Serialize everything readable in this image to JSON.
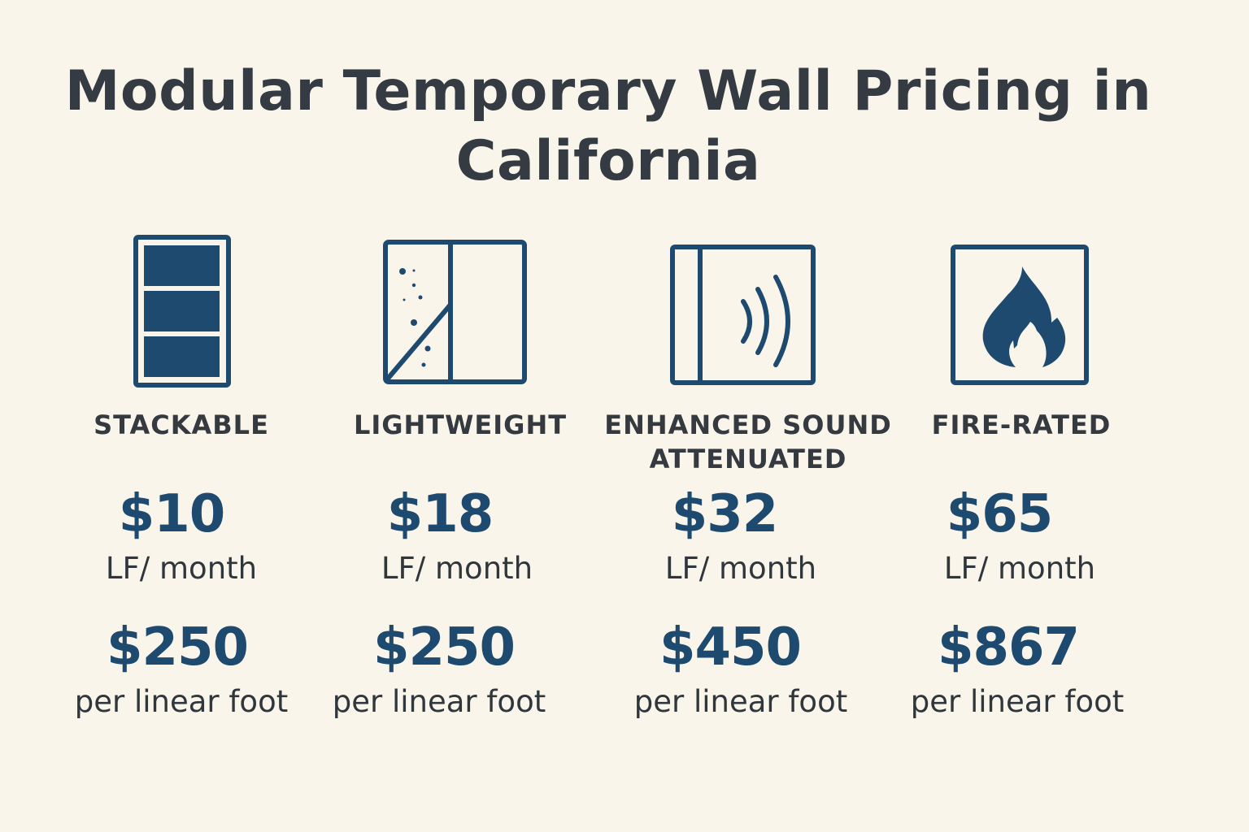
{
  "title": "Modular Temporary Wall Pricing in California",
  "colors": {
    "accent": "#1d4a6e",
    "text": "#343a40",
    "background": "#faf5eb"
  },
  "products": [
    {
      "icon": "stacked-panels-icon",
      "label": "STACKABLE",
      "monthly_price": "$10",
      "monthly_unit": "LF/ month",
      "purchase_price": "$250",
      "purchase_unit": "per linear foot"
    },
    {
      "icon": "lightweight-panel-icon",
      "label": "LIGHTWEIGHT",
      "monthly_price": "$18",
      "monthly_unit": "LF/ month",
      "purchase_price": "$250",
      "purchase_unit": "per linear foot"
    },
    {
      "icon": "sound-waves-panel-icon",
      "label": "ENHANCED SOUND ATTENUATED",
      "monthly_price": "$32",
      "monthly_unit": "LF/ month",
      "purchase_price": "$450",
      "purchase_unit": "per linear foot"
    },
    {
      "icon": "flame-panel-icon",
      "label": "FIRE-RATED",
      "monthly_price": "$65",
      "monthly_unit": "LF/ month",
      "purchase_price": "$867",
      "purchase_unit": "per linear foot"
    }
  ]
}
